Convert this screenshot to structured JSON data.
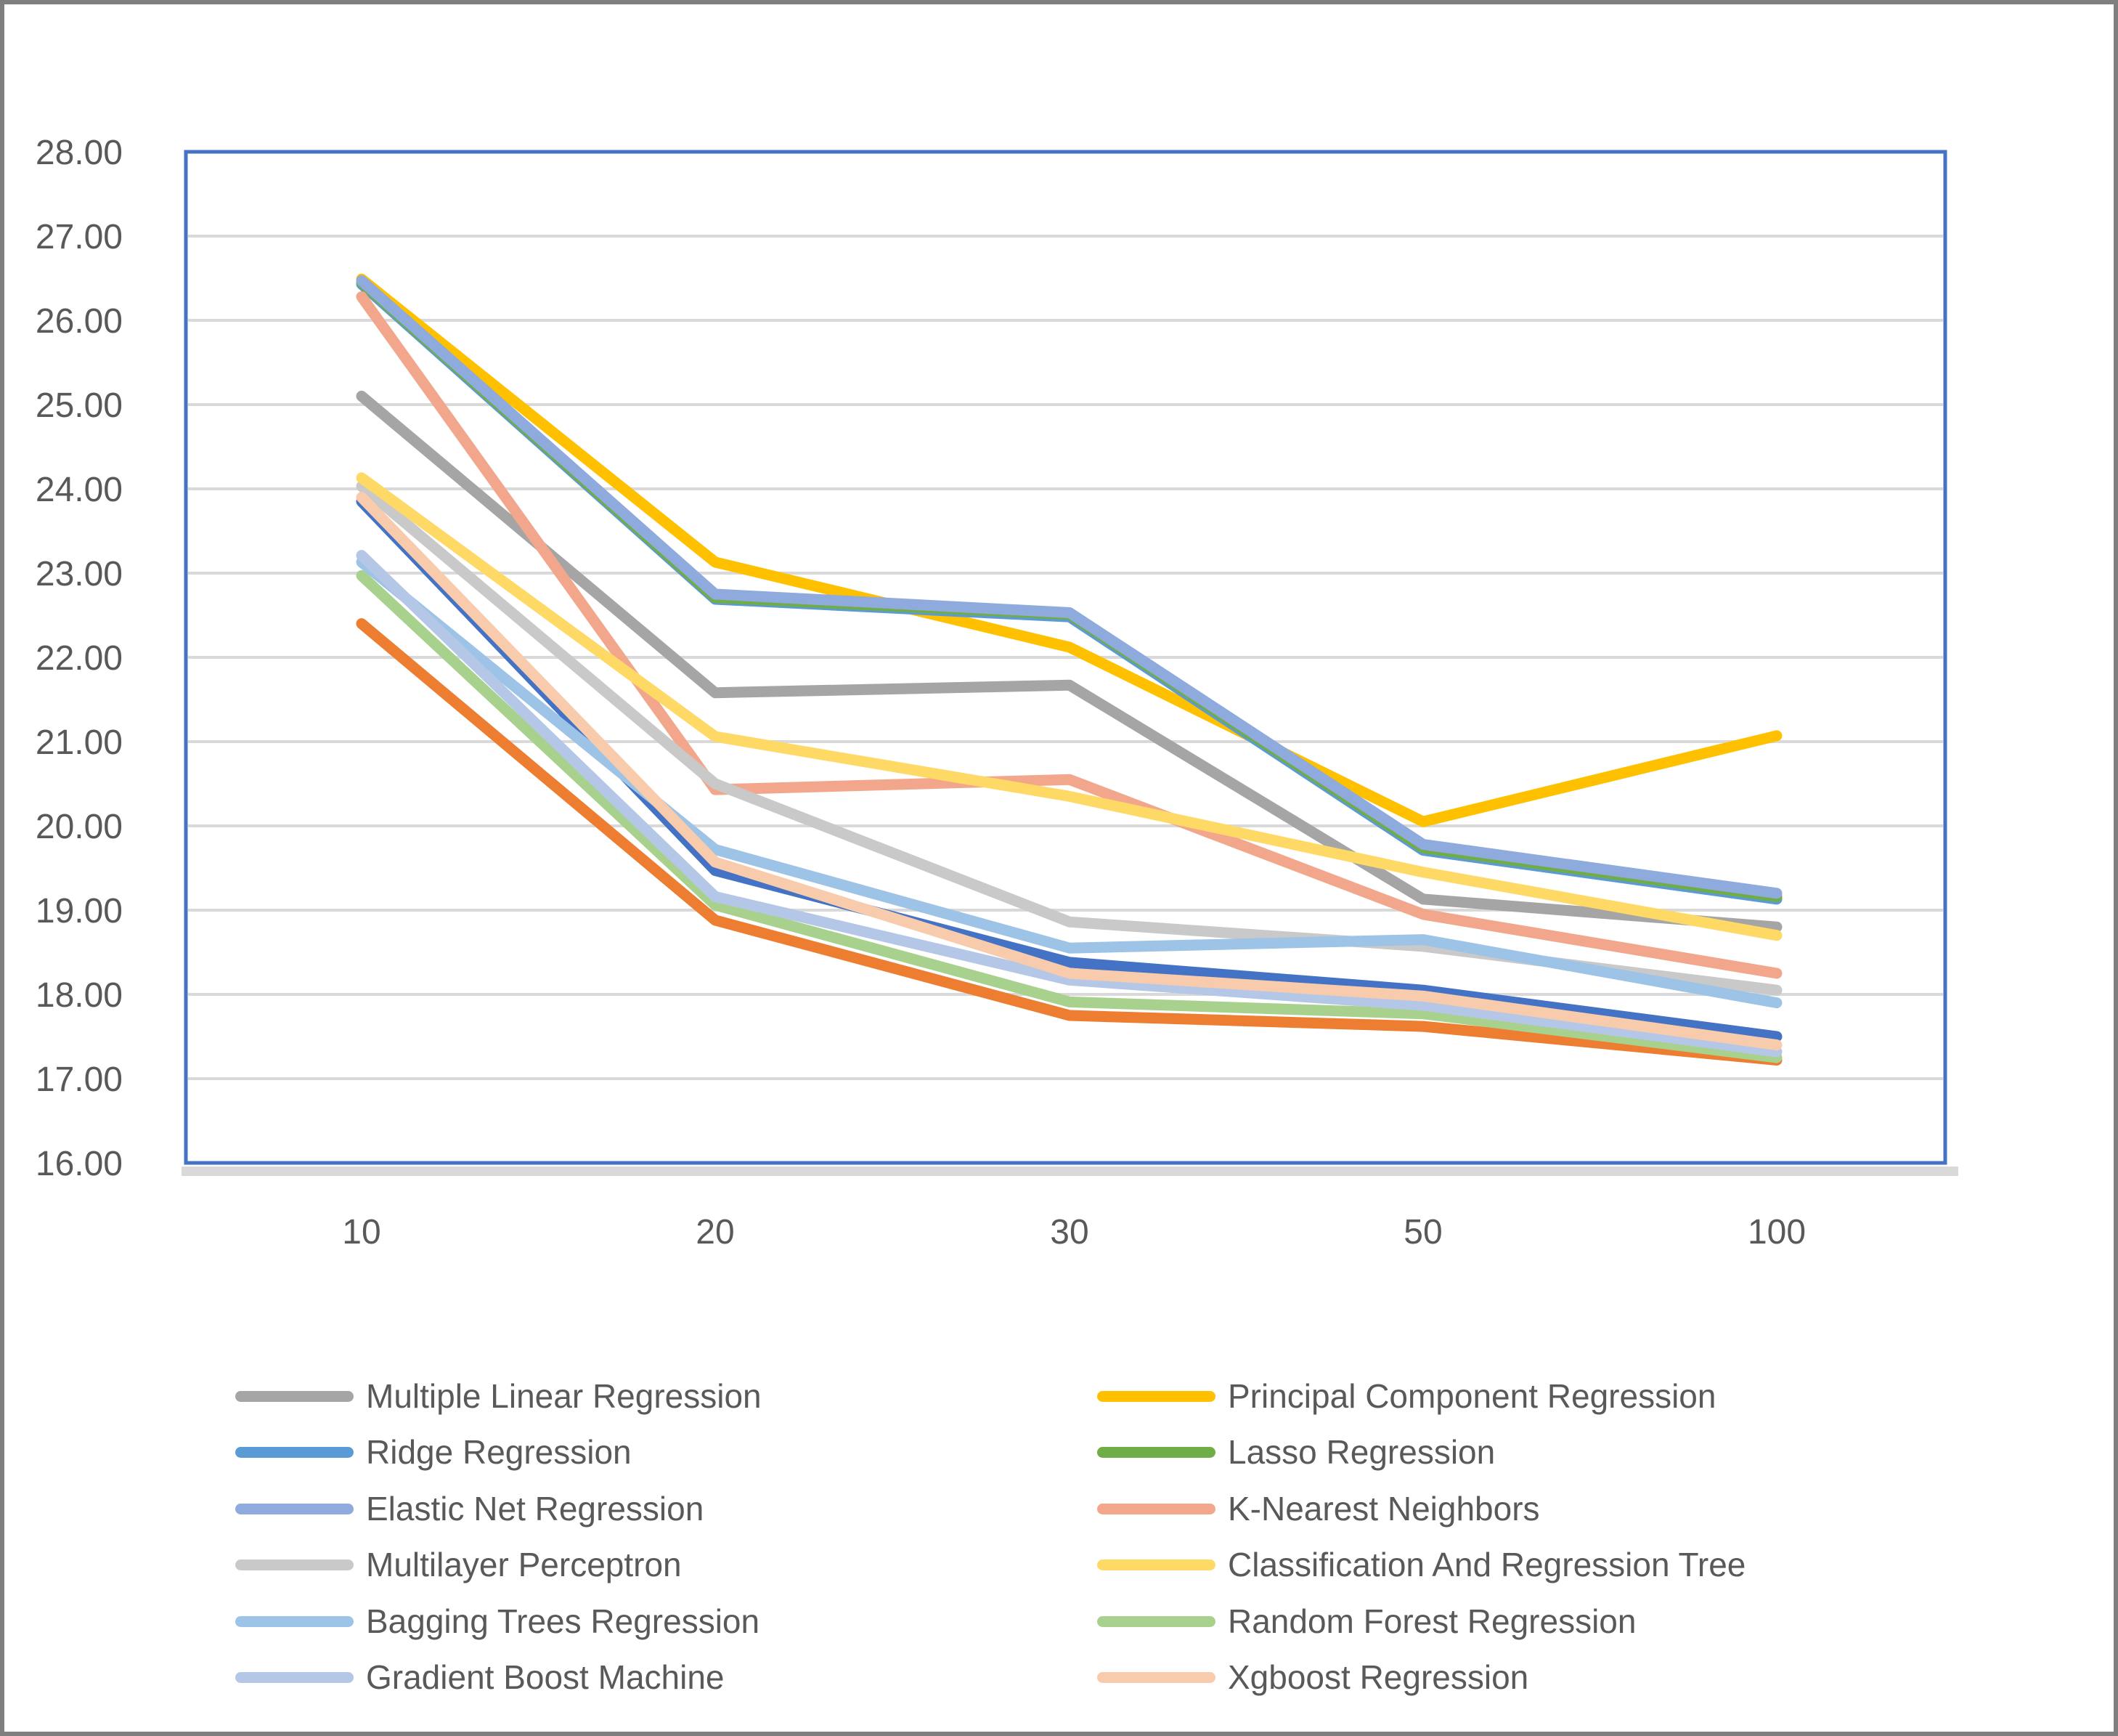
{
  "figure": {
    "background": "#FFFFFF",
    "outer_border_color": "#7F7F7F",
    "plot_border_color": "#4472C4",
    "gridline_color": "#D9D9D9",
    "axis_strip_color": "#D9D9D9",
    "tick_label_color": "#595959",
    "legend_text_color": "#595959"
  },
  "chart_data": {
    "type": "line",
    "title": "",
    "xlabel": "",
    "ylabel": "",
    "grid": true,
    "legend_position": "bottom-two-columns",
    "x_categories": [
      "10",
      "20",
      "30",
      "50",
      "100"
    ],
    "y_axis": {
      "min": 16,
      "max": 28,
      "step": 1,
      "tick_labels": [
        "28.00",
        "27.00",
        "26.00",
        "25.00",
        "24.00",
        "23.00",
        "22.00",
        "21.00",
        "20.00",
        "19.00",
        "18.00",
        "17.00",
        "16.00"
      ]
    },
    "series": [
      {
        "name": "",
        "in_legend": false,
        "color": "#4472C4",
        "values": [
          23.85,
          19.47,
          18.38,
          18.05,
          17.5
        ]
      },
      {
        "name": "",
        "in_legend": false,
        "color": "#ED7D31",
        "values": [
          22.4,
          18.88,
          17.75,
          17.62,
          17.22
        ]
      },
      {
        "name": "Multiple Linear Regression",
        "in_legend": true,
        "color": "#A5A5A5",
        "values": [
          25.1,
          21.58,
          21.67,
          19.13,
          18.8
        ]
      },
      {
        "name": "Principal Component Regression",
        "in_legend": true,
        "color": "#FFC000",
        "values": [
          26.49,
          23.13,
          22.12,
          20.05,
          21.07
        ]
      },
      {
        "name": "Ridge Regression",
        "in_legend": true,
        "color": "#5B9BD5",
        "values": [
          26.43,
          22.69,
          22.48,
          19.71,
          19.13
        ]
      },
      {
        "name": "Lasso Regression",
        "in_legend": true,
        "color": "#70AD47",
        "values": [
          26.45,
          22.71,
          22.51,
          19.74,
          19.16
        ]
      },
      {
        "name": "Elastic Net Regression",
        "in_legend": true,
        "color": "#8FAADC",
        "values": [
          26.47,
          22.75,
          22.53,
          19.78,
          19.2
        ]
      },
      {
        "name": "K-Nearest Neighbors",
        "in_legend": true,
        "color": "#F2A78C",
        "values": [
          26.28,
          20.43,
          20.55,
          18.95,
          18.25
        ]
      },
      {
        "name": "Multilayer Perceptron",
        "in_legend": true,
        "color": "#C9C9C9",
        "values": [
          24.03,
          20.5,
          18.86,
          18.57,
          18.05
        ]
      },
      {
        "name": "Classification And Regression Tree",
        "in_legend": true,
        "color": "#FFD966",
        "values": [
          24.13,
          21.06,
          20.35,
          19.45,
          18.7
        ]
      },
      {
        "name": "Bagging Trees Regression",
        "in_legend": true,
        "color": "#9DC3E6",
        "values": [
          23.13,
          19.72,
          18.55,
          18.65,
          17.9
        ]
      },
      {
        "name": "Random Forest Regression",
        "in_legend": true,
        "color": "#A9D18E",
        "values": [
          22.97,
          19.06,
          17.91,
          17.77,
          17.25
        ]
      },
      {
        "name": "Gradient Boost Machine",
        "in_legend": true,
        "color": "#B4C7E7",
        "values": [
          23.21,
          19.16,
          18.17,
          17.87,
          17.32
        ]
      },
      {
        "name": "Xgboost Regression",
        "in_legend": true,
        "color": "#F8CBAD",
        "values": [
          23.9,
          19.57,
          18.25,
          17.98,
          17.4
        ]
      }
    ],
    "legend_entries": [
      "Multiple Linear Regression",
      "Principal Component Regression",
      "Ridge Regression",
      "Lasso Regression",
      "Elastic Net Regression",
      "K-Nearest Neighbors",
      "Multilayer Perceptron",
      "Classification And Regression Tree",
      "Bagging Trees Regression",
      "Random Forest Regression",
      "Gradient Boost Machine",
      "Xgboost Regression"
    ]
  }
}
